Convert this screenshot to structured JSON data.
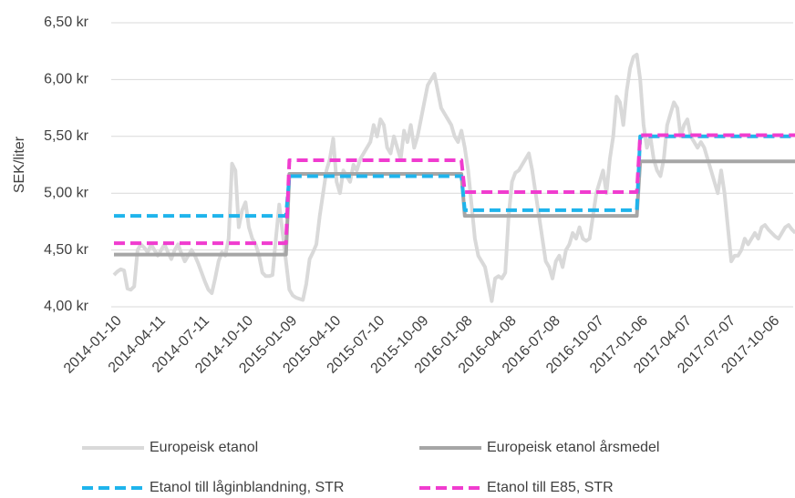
{
  "chart_data": {
    "type": "line",
    "ylabel": "SEK/liter",
    "ylim": [
      4,
      6.5
    ],
    "yticks": [
      {
        "value": 4,
        "label": "4,00 kr"
      },
      {
        "value": 4.5,
        "label": "4,50 kr"
      },
      {
        "value": 5,
        "label": "5,00 kr"
      },
      {
        "value": 5.5,
        "label": "5,50 kr"
      },
      {
        "value": 6,
        "label": "6,00 kr"
      },
      {
        "value": 6.5,
        "label": "6,50 kr"
      }
    ],
    "grid": true,
    "legend": "bottom",
    "categories": [
      "2014-01-10",
      null,
      null,
      null,
      null,
      null,
      null,
      null,
      null,
      null,
      null,
      null,
      null,
      "2014-04-11",
      null,
      null,
      null,
      null,
      null,
      null,
      null,
      null,
      null,
      null,
      null,
      null,
      "2014-07-11",
      null,
      null,
      null,
      null,
      null,
      null,
      null,
      null,
      null,
      null,
      null,
      null,
      "2014-10-10",
      null,
      null,
      null,
      null,
      null,
      null,
      null,
      null,
      null,
      null,
      null,
      null,
      "2015-01-09",
      null,
      null,
      null,
      null,
      null,
      null,
      null,
      null,
      null,
      null,
      null,
      null,
      "2015-04-10",
      null,
      null,
      null,
      null,
      null,
      null,
      null,
      null,
      null,
      null,
      null,
      null,
      "2015-07-10",
      null,
      null,
      null,
      null,
      null,
      null,
      null,
      null,
      null,
      null,
      null,
      null,
      "2015-10-09",
      null,
      null,
      null,
      null,
      null,
      null,
      null,
      null,
      null,
      null,
      null,
      null,
      "2016-01-08",
      null,
      null,
      null,
      null,
      null,
      null,
      null,
      null,
      null,
      null,
      null,
      null,
      "2016-04-08",
      null,
      null,
      null,
      null,
      null,
      null,
      null,
      null,
      null,
      null,
      null,
      null,
      "2016-07-08",
      null,
      null,
      null,
      null,
      null,
      null,
      null,
      null,
      null,
      null,
      null,
      null,
      "2016-10-07",
      null,
      null,
      null,
      null,
      null,
      null,
      null,
      null,
      null,
      null,
      null,
      null,
      "2017-01-06",
      null,
      null,
      null,
      null,
      null,
      null,
      null,
      null,
      null,
      null,
      null,
      null,
      "2017-04-07",
      null,
      null,
      null,
      null,
      null,
      null,
      null,
      null,
      null,
      null,
      null,
      null,
      "2017-07-07",
      null,
      null,
      null,
      null,
      null,
      null,
      null,
      null,
      null,
      null,
      null,
      null,
      "2017-10-06",
      null,
      null,
      null,
      null,
      null,
      null,
      null
    ],
    "series": [
      {
        "name": "Europeisk etanol",
        "color": "#d9d9d9",
        "line_style": "solid",
        "values": [
          4.28,
          4.31,
          4.33,
          4.32,
          4.16,
          4.15,
          4.18,
          4.5,
          4.55,
          4.52,
          4.48,
          4.55,
          4.5,
          4.45,
          4.5,
          4.55,
          4.48,
          4.42,
          4.5,
          4.55,
          4.47,
          4.4,
          4.45,
          4.5,
          4.45,
          4.38,
          4.3,
          4.22,
          4.15,
          4.12,
          4.25,
          4.4,
          4.48,
          4.45,
          4.6,
          5.26,
          5.2,
          4.7,
          4.85,
          4.92,
          4.7,
          4.6,
          4.55,
          4.45,
          4.3,
          4.27,
          4.27,
          4.28,
          4.6,
          4.9,
          4.65,
          4.4,
          4.15,
          4.1,
          4.08,
          4.07,
          4.06,
          4.2,
          4.42,
          4.48,
          4.55,
          4.8,
          5.0,
          5.2,
          5.3,
          5.48,
          5.1,
          5.0,
          5.2,
          5.15,
          5.1,
          5.25,
          5.2,
          5.3,
          5.35,
          5.4,
          5.45,
          5.6,
          5.5,
          5.65,
          5.6,
          5.4,
          5.35,
          5.5,
          5.4,
          5.3,
          5.55,
          5.45,
          5.6,
          5.4,
          5.5,
          5.65,
          5.8,
          5.95,
          6.0,
          6.05,
          5.9,
          5.75,
          5.7,
          5.65,
          5.6,
          5.5,
          5.45,
          5.55,
          5.4,
          5.2,
          4.9,
          4.6,
          4.45,
          4.4,
          4.35,
          4.2,
          4.05,
          4.25,
          4.27,
          4.25,
          4.3,
          4.8,
          5.1,
          5.18,
          5.2,
          5.25,
          5.3,
          5.35,
          5.2,
          5.0,
          4.8,
          4.6,
          4.4,
          4.35,
          4.25,
          4.4,
          4.45,
          4.35,
          4.5,
          4.55,
          4.65,
          4.6,
          4.7,
          4.6,
          4.58,
          4.6,
          4.8,
          5.0,
          5.1,
          5.2,
          5.0,
          5.3,
          5.5,
          5.85,
          5.8,
          5.6,
          5.9,
          6.1,
          6.2,
          6.22,
          6.0,
          5.6,
          5.4,
          5.5,
          5.3,
          5.2,
          5.15,
          5.3,
          5.6,
          5.7,
          5.8,
          5.75,
          5.5,
          5.6,
          5.65,
          5.5,
          5.45,
          5.4,
          5.45,
          5.4,
          5.3,
          5.2,
          5.1,
          5.0,
          5.2,
          5.0,
          4.7,
          4.4,
          4.45,
          4.45,
          4.5,
          4.6,
          4.55,
          4.6,
          4.65,
          4.6,
          4.7,
          4.72,
          4.68,
          4.65,
          4.62,
          4.6,
          4.65,
          4.7,
          4.72,
          4.68,
          4.65
        ]
      },
      {
        "name": "Europeisk etanol årsmedel",
        "color": "#a6a6a6",
        "line_style": "solid",
        "values": [
          4.46,
          4.46,
          4.46,
          4.46,
          4.46,
          4.46,
          4.46,
          4.46,
          4.46,
          4.46,
          4.46,
          4.46,
          4.46,
          4.46,
          4.46,
          4.46,
          4.46,
          4.46,
          4.46,
          4.46,
          4.46,
          4.46,
          4.46,
          4.46,
          4.46,
          4.46,
          4.46,
          4.46,
          4.46,
          4.46,
          4.46,
          4.46,
          4.46,
          4.46,
          4.46,
          4.46,
          4.46,
          4.46,
          4.46,
          4.46,
          4.46,
          4.46,
          4.46,
          4.46,
          4.46,
          4.46,
          4.46,
          4.46,
          4.46,
          4.46,
          4.46,
          4.46,
          5.17,
          5.17,
          5.17,
          5.17,
          5.17,
          5.17,
          5.17,
          5.17,
          5.17,
          5.17,
          5.17,
          5.17,
          5.17,
          5.17,
          5.17,
          5.17,
          5.17,
          5.17,
          5.17,
          5.17,
          5.17,
          5.17,
          5.17,
          5.17,
          5.17,
          5.17,
          5.17,
          5.17,
          5.17,
          5.17,
          5.17,
          5.17,
          5.17,
          5.17,
          5.17,
          5.17,
          5.17,
          5.17,
          5.17,
          5.17,
          5.17,
          5.17,
          5.17,
          5.17,
          5.17,
          5.17,
          5.17,
          5.17,
          5.17,
          5.17,
          5.17,
          5.17,
          4.8,
          4.8,
          4.8,
          4.8,
          4.8,
          4.8,
          4.8,
          4.8,
          4.8,
          4.8,
          4.8,
          4.8,
          4.8,
          4.8,
          4.8,
          4.8,
          4.8,
          4.8,
          4.8,
          4.8,
          4.8,
          4.8,
          4.8,
          4.8,
          4.8,
          4.8,
          4.8,
          4.8,
          4.8,
          4.8,
          4.8,
          4.8,
          4.8,
          4.8,
          4.8,
          4.8,
          4.8,
          4.8,
          4.8,
          4.8,
          4.8,
          4.8,
          4.8,
          4.8,
          4.8,
          4.8,
          4.8,
          4.8,
          4.8,
          4.8,
          4.8,
          4.8,
          5.28,
          5.28,
          5.28,
          5.28,
          5.28,
          5.28,
          5.28,
          5.28,
          5.28,
          5.28,
          5.28,
          5.28,
          5.28,
          5.28,
          5.28,
          5.28,
          5.28,
          5.28,
          5.28,
          5.28,
          5.28,
          5.28,
          5.28,
          5.28,
          5.28,
          5.28,
          5.28,
          5.28,
          5.28,
          5.28,
          5.28,
          5.28,
          5.28,
          5.28,
          5.28,
          5.28,
          5.28,
          5.28,
          5.28,
          5.28,
          5.28,
          5.28,
          5.28,
          5.28,
          5.28,
          5.28,
          5.28
        ]
      },
      {
        "name": "Etanol till låginblandning, STR",
        "color": "#1fb4ec",
        "line_style": "dashed",
        "values": [
          4.8,
          4.8,
          4.8,
          4.8,
          4.8,
          4.8,
          4.8,
          4.8,
          4.8,
          4.8,
          4.8,
          4.8,
          4.8,
          4.8,
          4.8,
          4.8,
          4.8,
          4.8,
          4.8,
          4.8,
          4.8,
          4.8,
          4.8,
          4.8,
          4.8,
          4.8,
          4.8,
          4.8,
          4.8,
          4.8,
          4.8,
          4.8,
          4.8,
          4.8,
          4.8,
          4.8,
          4.8,
          4.8,
          4.8,
          4.8,
          4.8,
          4.8,
          4.8,
          4.8,
          4.8,
          4.8,
          4.8,
          4.8,
          4.8,
          4.8,
          4.8,
          4.8,
          5.15,
          5.15,
          5.15,
          5.15,
          5.15,
          5.15,
          5.15,
          5.15,
          5.15,
          5.15,
          5.15,
          5.15,
          5.15,
          5.15,
          5.15,
          5.15,
          5.15,
          5.15,
          5.15,
          5.15,
          5.15,
          5.15,
          5.15,
          5.15,
          5.15,
          5.15,
          5.15,
          5.15,
          5.15,
          5.15,
          5.15,
          5.15,
          5.15,
          5.15,
          5.15,
          5.15,
          5.15,
          5.15,
          5.15,
          5.15,
          5.15,
          5.15,
          5.15,
          5.15,
          5.15,
          5.15,
          5.15,
          5.15,
          5.15,
          5.15,
          5.15,
          5.15,
          4.85,
          4.85,
          4.85,
          4.85,
          4.85,
          4.85,
          4.85,
          4.85,
          4.85,
          4.85,
          4.85,
          4.85,
          4.85,
          4.85,
          4.85,
          4.85,
          4.85,
          4.85,
          4.85,
          4.85,
          4.85,
          4.85,
          4.85,
          4.85,
          4.85,
          4.85,
          4.85,
          4.85,
          4.85,
          4.85,
          4.85,
          4.85,
          4.85,
          4.85,
          4.85,
          4.85,
          4.85,
          4.85,
          4.85,
          4.85,
          4.85,
          4.85,
          4.85,
          4.85,
          4.85,
          4.85,
          4.85,
          4.85,
          4.85,
          4.85,
          4.85,
          4.85,
          5.5,
          5.5,
          5.5,
          5.5,
          5.5,
          5.5,
          5.5,
          5.5,
          5.5,
          5.5,
          5.5,
          5.5,
          5.5,
          5.5,
          5.5,
          5.5,
          5.5,
          5.5,
          5.5,
          5.5,
          5.5,
          5.5,
          5.5,
          5.5,
          5.5,
          5.5,
          5.5,
          5.5,
          5.5,
          5.5,
          5.5,
          5.5,
          5.5,
          5.5,
          5.5,
          5.5,
          5.5,
          5.5,
          5.5,
          5.5,
          5.5,
          5.5,
          5.5,
          5.5,
          5.5,
          5.5,
          5.5
        ]
      },
      {
        "name": "Etanol till E85, STR",
        "color": "#f03ccf",
        "line_style": "dashed",
        "values": [
          4.56,
          4.56,
          4.56,
          4.56,
          4.56,
          4.56,
          4.56,
          4.56,
          4.56,
          4.56,
          4.56,
          4.56,
          4.56,
          4.56,
          4.56,
          4.56,
          4.56,
          4.56,
          4.56,
          4.56,
          4.56,
          4.56,
          4.56,
          4.56,
          4.56,
          4.56,
          4.56,
          4.56,
          4.56,
          4.56,
          4.56,
          4.56,
          4.56,
          4.56,
          4.56,
          4.56,
          4.56,
          4.56,
          4.56,
          4.56,
          4.56,
          4.56,
          4.56,
          4.56,
          4.56,
          4.56,
          4.56,
          4.56,
          4.56,
          4.56,
          4.56,
          4.56,
          5.29,
          5.29,
          5.29,
          5.29,
          5.29,
          5.29,
          5.29,
          5.29,
          5.29,
          5.29,
          5.29,
          5.29,
          5.29,
          5.29,
          5.29,
          5.29,
          5.29,
          5.29,
          5.29,
          5.29,
          5.29,
          5.29,
          5.29,
          5.29,
          5.29,
          5.29,
          5.29,
          5.29,
          5.29,
          5.29,
          5.29,
          5.29,
          5.29,
          5.29,
          5.29,
          5.29,
          5.29,
          5.29,
          5.29,
          5.29,
          5.29,
          5.29,
          5.29,
          5.29,
          5.29,
          5.29,
          5.29,
          5.29,
          5.29,
          5.29,
          5.29,
          5.29,
          5.01,
          5.01,
          5.01,
          5.01,
          5.01,
          5.01,
          5.01,
          5.01,
          5.01,
          5.01,
          5.01,
          5.01,
          5.01,
          5.01,
          5.01,
          5.01,
          5.01,
          5.01,
          5.01,
          5.01,
          5.01,
          5.01,
          5.01,
          5.01,
          5.01,
          5.01,
          5.01,
          5.01,
          5.01,
          5.01,
          5.01,
          5.01,
          5.01,
          5.01,
          5.01,
          5.01,
          5.01,
          5.01,
          5.01,
          5.01,
          5.01,
          5.01,
          5.01,
          5.01,
          5.01,
          5.01,
          5.01,
          5.01,
          5.01,
          5.01,
          5.01,
          5.01,
          5.51,
          5.51,
          5.51,
          5.51,
          5.51,
          5.51,
          5.51,
          5.51,
          5.51,
          5.51,
          5.51,
          5.51,
          5.51,
          5.51,
          5.51,
          5.51,
          5.51,
          5.51,
          5.51,
          5.51,
          5.51,
          5.51,
          5.51,
          5.51,
          5.51,
          5.51,
          5.51,
          5.51,
          5.51,
          5.51,
          5.51,
          5.51,
          5.51,
          5.51,
          5.51,
          5.51,
          5.51,
          5.51,
          5.51,
          5.51,
          5.51,
          5.51,
          5.51,
          5.51,
          5.51,
          5.51,
          5.51
        ]
      }
    ]
  }
}
